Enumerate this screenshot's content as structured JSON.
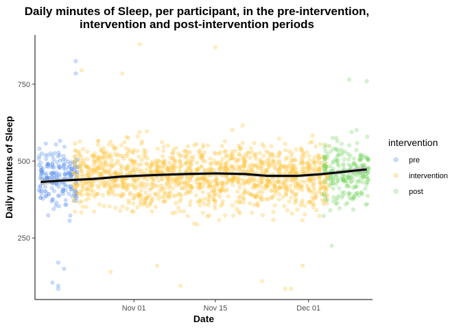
{
  "chart_data": {
    "type": "scatter",
    "title_lines": [
      "Daily minutes of Sleep, per participant, in the pre-intervention,",
      "intervention and post-intervention periods"
    ],
    "xlabel": "Date",
    "ylabel": "Daily minutes of Sleep",
    "x_axis": {
      "type": "date",
      "range": [
        "2021-10-15",
        "2021-12-12"
      ],
      "ticks": [
        {
          "value": "2021-11-01",
          "label": "Nov 01"
        },
        {
          "value": "2021-11-15",
          "label": "Nov 15"
        },
        {
          "value": "2021-12-01",
          "label": "Dec 01"
        }
      ]
    },
    "y_axis": {
      "range": [
        50,
        910
      ],
      "ticks": [
        {
          "value": 250,
          "label": "250"
        },
        {
          "value": 500,
          "label": "500"
        },
        {
          "value": 750,
          "label": "750"
        }
      ]
    },
    "grid": false,
    "legend": {
      "title": "intervention",
      "position": "right",
      "entries": [
        "pre",
        "intervention",
        "post"
      ]
    },
    "series": [
      {
        "name": "pre",
        "color": "#5b93f2",
        "date_range": [
          "2021-10-16",
          "2021-10-22"
        ],
        "center": 450,
        "spread": 80,
        "points_per_day": 28,
        "outliers": [
          {
            "date": "2021-10-18",
            "value": 105
          },
          {
            "date": "2021-10-19",
            "value": 95
          },
          {
            "date": "2021-10-19",
            "value": 85
          },
          {
            "date": "2021-10-22",
            "value": 825
          },
          {
            "date": "2021-10-22",
            "value": 785
          },
          {
            "date": "2021-10-19",
            "value": 170
          },
          {
            "date": "2021-10-20",
            "value": 150
          }
        ]
      },
      {
        "name": "intervention",
        "color": "#ffc53d",
        "date_range": [
          "2021-10-22",
          "2021-12-04"
        ],
        "center": 450,
        "spread": 85,
        "points_per_day": 32,
        "outliers": [
          {
            "date": "2021-11-02",
            "value": 880
          },
          {
            "date": "2021-11-15",
            "value": 870
          },
          {
            "date": "2021-10-23",
            "value": 795
          },
          {
            "date": "2021-10-30",
            "value": 785
          },
          {
            "date": "2021-11-09",
            "value": 95
          },
          {
            "date": "2021-11-27",
            "value": 85
          },
          {
            "date": "2021-11-28",
            "value": 85
          },
          {
            "date": "2021-11-23",
            "value": 110
          },
          {
            "date": "2021-11-30",
            "value": 160
          },
          {
            "date": "2021-11-05",
            "value": 160
          },
          {
            "date": "2021-10-28",
            "value": 140
          }
        ]
      },
      {
        "name": "post",
        "color": "#7fd66b",
        "date_range": [
          "2021-12-04",
          "2021-12-11"
        ],
        "center": 460,
        "spread": 85,
        "points_per_day": 30,
        "outliers": [
          {
            "date": "2021-12-08",
            "value": 765
          },
          {
            "date": "2021-12-11",
            "value": 760
          },
          {
            "date": "2021-12-05",
            "value": 225
          }
        ]
      }
    ],
    "trend": {
      "name": "smooth",
      "color": "#000000",
      "points": [
        {
          "date": "2021-10-16",
          "value": 432
        },
        {
          "date": "2021-10-20",
          "value": 437
        },
        {
          "date": "2021-10-25",
          "value": 442
        },
        {
          "date": "2021-10-30",
          "value": 450
        },
        {
          "date": "2021-11-05",
          "value": 455
        },
        {
          "date": "2021-11-10",
          "value": 458
        },
        {
          "date": "2021-11-15",
          "value": 460
        },
        {
          "date": "2021-11-20",
          "value": 458
        },
        {
          "date": "2021-11-24",
          "value": 452
        },
        {
          "date": "2021-11-29",
          "value": 452
        },
        {
          "date": "2021-12-03",
          "value": 457
        },
        {
          "date": "2021-12-07",
          "value": 465
        },
        {
          "date": "2021-12-11",
          "value": 473
        }
      ]
    }
  }
}
